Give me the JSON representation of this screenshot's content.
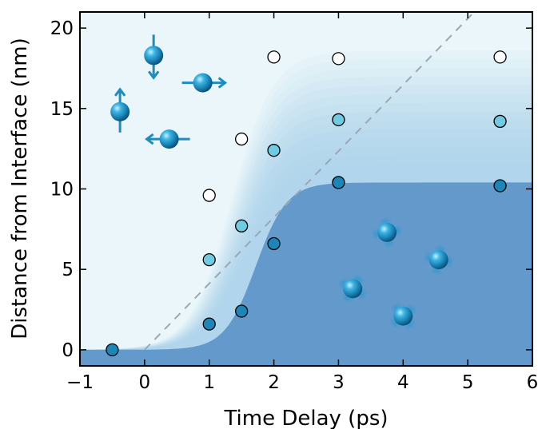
{
  "chart_data": {
    "type": "scatter",
    "title": "",
    "xlabel": "Time Delay (ps)",
    "ylabel": "Distance from Interface (nm)",
    "xlim": [
      -1,
      6
    ],
    "ylim": [
      -1,
      21
    ],
    "xticks": [
      -1,
      0,
      1,
      2,
      3,
      4,
      5,
      6
    ],
    "yticks": [
      0,
      5,
      10,
      15,
      20
    ],
    "xtick_labels": [
      "−1",
      "0",
      "1",
      "2",
      "3",
      "4",
      "5",
      "6"
    ],
    "ytick_labels": [
      "0",
      "5",
      "10",
      "15",
      "20"
    ],
    "grid": false,
    "legend": "none",
    "series": [
      {
        "color": "#ffffff",
        "points": [
          [
            1,
            9.6
          ],
          [
            1.5,
            13.1
          ],
          [
            2,
            18.2
          ],
          [
            3,
            18.1
          ],
          [
            5.5,
            18.2
          ]
        ]
      },
      {
        "color": "#6fcbe2",
        "points": [
          [
            1,
            5.6
          ],
          [
            1.5,
            7.7
          ],
          [
            2,
            12.4
          ],
          [
            3,
            14.3
          ],
          [
            5.5,
            14.2
          ]
        ]
      },
      {
        "color": "#1d86b6",
        "points": [
          [
            -0.5,
            0
          ],
          [
            1,
            1.6
          ],
          [
            1.5,
            2.4
          ],
          [
            2,
            6.6
          ],
          [
            3,
            10.4
          ],
          [
            5.5,
            10.2
          ]
        ]
      }
    ],
    "dashed_line": [
      [
        0,
        0
      ],
      [
        5.1,
        21
      ]
    ],
    "colors": {
      "background": "#eaf6fa",
      "shaded_region": "#6499cc",
      "gradient_mid": "#aad4ec",
      "dashed_line": "#9aa8b4",
      "sphere": "#1b8ec3",
      "arrow": "#1f8cc0"
    },
    "decorations": [
      {
        "icon": "spin-up-arrow-icon"
      },
      {
        "icon": "spin-down-arrow-icon"
      },
      {
        "icon": "spin-right-arrow-icon"
      },
      {
        "icon": "spin-left-arrow-icon"
      },
      {
        "icon": "spinning-particle-icon"
      },
      {
        "icon": "spinning-particle-icon"
      },
      {
        "icon": "spinning-particle-icon"
      },
      {
        "icon": "spinning-particle-icon"
      }
    ]
  }
}
